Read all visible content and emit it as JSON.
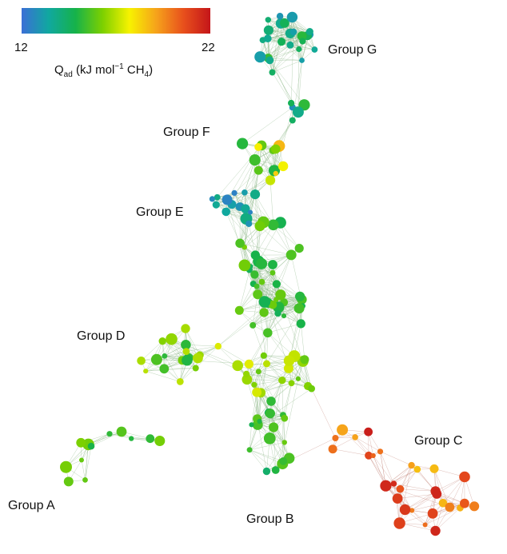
{
  "colorbar": {
    "min_label": "12",
    "max_label": "22",
    "min_value": 12,
    "max_value": 22,
    "title": "Q",
    "title_sub": "ad",
    "title_unit_a": " (kJ mol",
    "title_unit_sup": "−1",
    "title_unit_b": " CH",
    "title_unit_sub": "4",
    "title_unit_c": ")",
    "colors": [
      "#3b6fd6",
      "#10a8a0",
      "#16b24a",
      "#7cd000",
      "#f7f200",
      "#f6a21b",
      "#e8501c",
      "#c4151a"
    ]
  },
  "groups": [
    {
      "id": "A",
      "label": "Group A",
      "q_range": [
        14.5,
        16.0
      ]
    },
    {
      "id": "B",
      "label": "Group B",
      "q_range": [
        14.0,
        16.0
      ]
    },
    {
      "id": "C",
      "label": "Group C",
      "q_range": [
        18.5,
        22.0
      ]
    },
    {
      "id": "D",
      "label": "Group D",
      "q_range": [
        15.0,
        17.5
      ]
    },
    {
      "id": "E",
      "label": "Group E",
      "q_range": [
        12.5,
        14.0
      ]
    },
    {
      "id": "F",
      "label": "Group F",
      "q_range": [
        15.0,
        18.5
      ]
    },
    {
      "id": "G",
      "label": "Group G",
      "q_range": [
        12.5,
        15.5
      ]
    }
  ],
  "edge_color": "#88b484"
}
